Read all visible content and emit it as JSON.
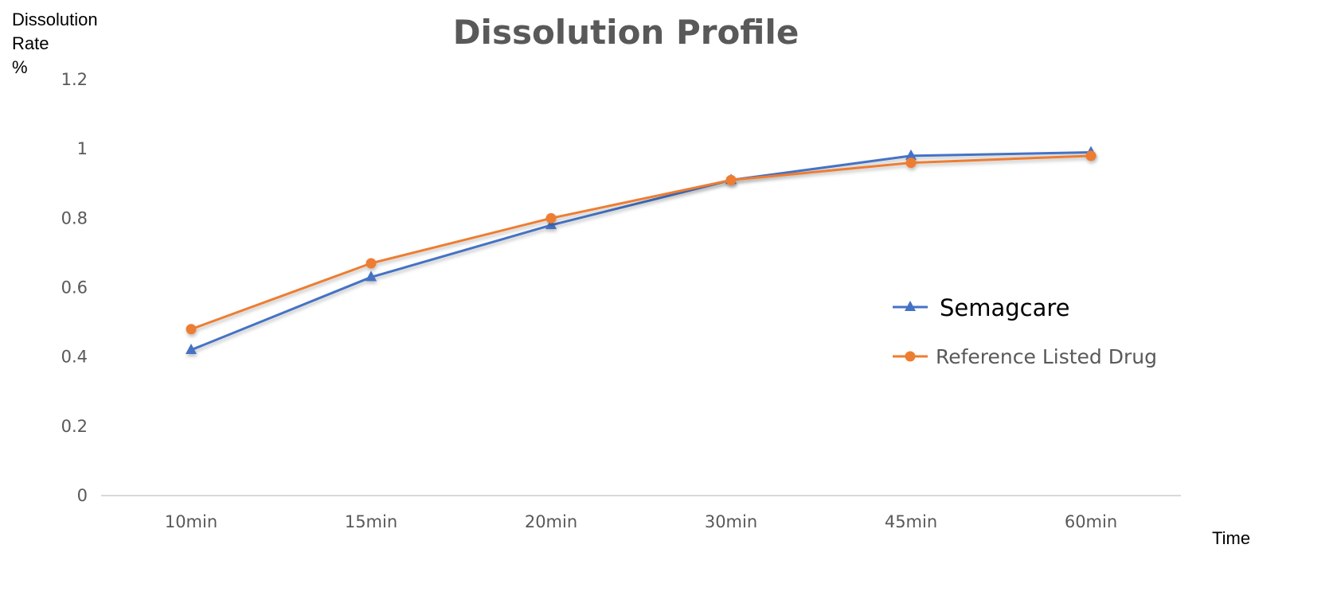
{
  "chart_data": {
    "type": "line",
    "title": "Dissolution Profile",
    "xlabel": "Time",
    "ylabel": "Dissolution Rate %",
    "ylabel_lines": [
      "Dissolution",
      "Rate",
      "%"
    ],
    "categories": [
      "10min",
      "15min",
      "20min",
      "30min",
      "45min",
      "60min"
    ],
    "series": [
      {
        "name": "Semagcare",
        "color": "#4472C4",
        "marker": "triangle",
        "values": [
          0.42,
          0.63,
          0.78,
          0.91,
          0.98,
          0.99
        ]
      },
      {
        "name": "Reference Listed Drug",
        "color": "#ED7D31",
        "marker": "circle",
        "values": [
          0.48,
          0.67,
          0.8,
          0.91,
          0.96,
          0.98
        ]
      }
    ],
    "ylim": [
      0,
      1.2
    ],
    "yticks": [
      "0",
      "0.2",
      "0.4",
      "0.6",
      "0.8",
      "1",
      "1.2"
    ],
    "grid": false,
    "legend_position": "right-center"
  }
}
